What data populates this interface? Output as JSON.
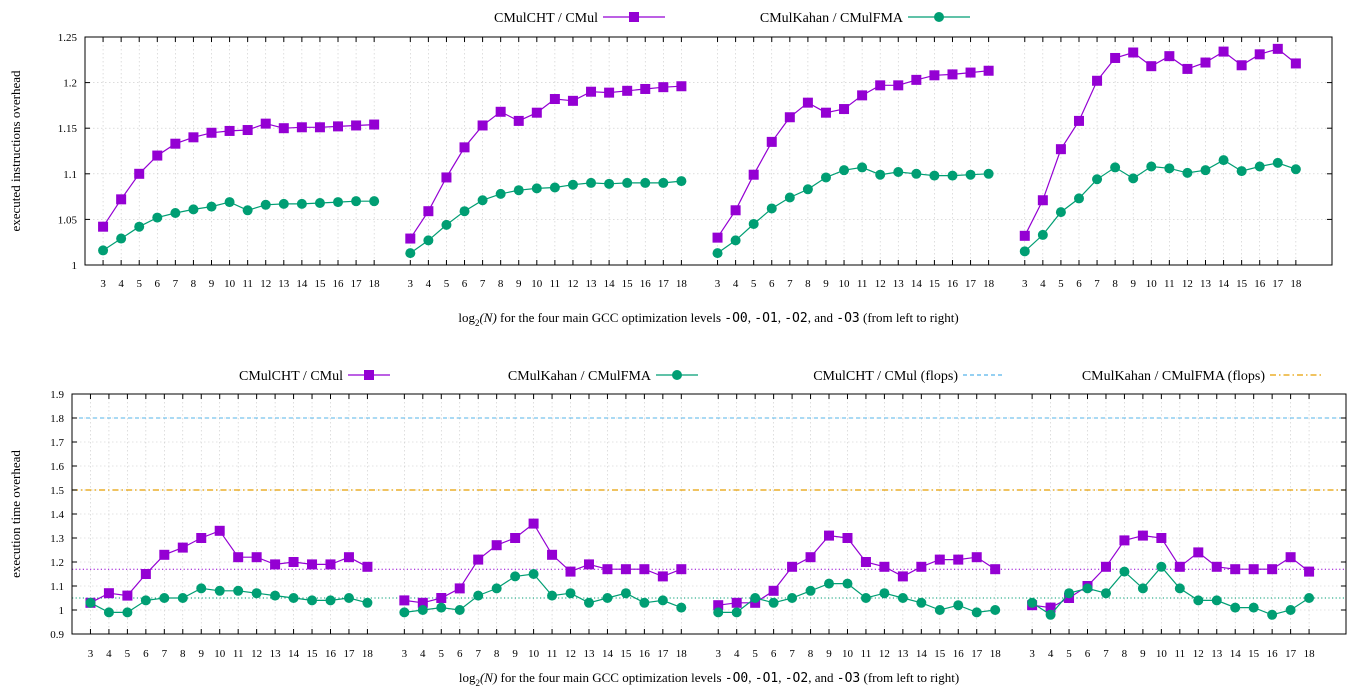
{
  "colors": {
    "cht": "#9400d3",
    "kahan": "#009e73",
    "cht_flops": "#56b4e9",
    "kahan_flops": "#e69f00"
  },
  "chart_data": [
    {
      "type": "line",
      "ylabel": "executed instructions overhead",
      "xlabel": {
        "prefix": "log",
        "sub": "2",
        "arg": "(N)",
        "text1": " for the four main GCC optimization levels ",
        "opt0": "-O0",
        "sep1": ", ",
        "opt1": "-O1",
        "sep2": ", ",
        "opt2": "-O2",
        "sep3": ", and ",
        "opt3": "-O3",
        "text2": " (from left to right)"
      },
      "ylim": [
        1,
        1.25
      ],
      "yticks": [
        "1",
        "1.05",
        "1.1",
        "1.15",
        "1.2",
        "1.25"
      ],
      "x": [
        3,
        4,
        5,
        6,
        7,
        8,
        9,
        10,
        11,
        12,
        13,
        14,
        15,
        16,
        17,
        18
      ],
      "legend": [
        "CMulCHT / CMul",
        "CMulKahan / CMulFMA"
      ],
      "series": [
        {
          "name": "CMulCHT / CMul",
          "panels": [
            [
              1.042,
              1.072,
              1.1,
              1.12,
              1.133,
              1.14,
              1.145,
              1.147,
              1.148,
              1.155,
              1.15,
              1.151,
              1.151,
              1.152,
              1.153,
              1.154
            ],
            [
              1.029,
              1.059,
              1.096,
              1.129,
              1.153,
              1.168,
              1.158,
              1.167,
              1.182,
              1.18,
              1.19,
              1.189,
              1.191,
              1.193,
              1.195,
              1.196
            ],
            [
              1.03,
              1.06,
              1.099,
              1.135,
              1.162,
              1.178,
              1.167,
              1.171,
              1.186,
              1.197,
              1.197,
              1.203,
              1.208,
              1.209,
              1.211,
              1.213
            ],
            [
              1.032,
              1.071,
              1.127,
              1.158,
              1.202,
              1.227,
              1.233,
              1.218,
              1.229,
              1.215,
              1.222,
              1.234,
              1.219,
              1.231,
              1.237,
              1.221
            ]
          ]
        },
        {
          "name": "CMulKahan / CMulFMA",
          "panels": [
            [
              1.016,
              1.029,
              1.042,
              1.052,
              1.057,
              1.061,
              1.064,
              1.069,
              1.06,
              1.066,
              1.067,
              1.067,
              1.068,
              1.069,
              1.07,
              1.07
            ],
            [
              1.013,
              1.027,
              1.044,
              1.059,
              1.071,
              1.078,
              1.082,
              1.084,
              1.085,
              1.088,
              1.09,
              1.089,
              1.09,
              1.09,
              1.09,
              1.092
            ],
            [
              1.013,
              1.027,
              1.045,
              1.062,
              1.074,
              1.083,
              1.096,
              1.104,
              1.107,
              1.099,
              1.102,
              1.1,
              1.098,
              1.098,
              1.099,
              1.1
            ],
            [
              1.015,
              1.033,
              1.058,
              1.073,
              1.094,
              1.107,
              1.095,
              1.108,
              1.106,
              1.101,
              1.104,
              1.115,
              1.103,
              1.108,
              1.112,
              1.105
            ]
          ]
        }
      ]
    },
    {
      "type": "line",
      "ylabel": "execution time overhead",
      "xlabel": {
        "prefix": "log",
        "sub": "2",
        "arg": "(N)",
        "text1": " for the four main GCC optimization levels ",
        "opt0": "-O0",
        "sep1": ", ",
        "opt1": "-O1",
        "sep2": ", ",
        "opt2": "-O2",
        "sep3": ", and ",
        "opt3": "-O3",
        "text2": " (from left to right)"
      },
      "ylim": [
        0.9,
        1.9
      ],
      "yticks": [
        "0.9",
        "1",
        "1.1",
        "1.2",
        "1.3",
        "1.4",
        "1.5",
        "1.6",
        "1.7",
        "1.8",
        "1.9"
      ],
      "x": [
        3,
        4,
        5,
        6,
        7,
        8,
        9,
        10,
        11,
        12,
        13,
        14,
        15,
        16,
        17,
        18
      ],
      "legend": [
        "CMulCHT / CMul",
        "CMulKahan / CMulFMA",
        "CMulCHT / CMul (flops)",
        "CMulKahan / CMulFMA (flops)"
      ],
      "series": [
        {
          "name": "CMulCHT / CMul",
          "panels": [
            [
              1.03,
              1.07,
              1.06,
              1.15,
              1.23,
              1.26,
              1.3,
              1.33,
              1.22,
              1.22,
              1.19,
              1.2,
              1.19,
              1.19,
              1.22,
              1.18
            ],
            [
              1.04,
              1.03,
              1.05,
              1.09,
              1.21,
              1.27,
              1.3,
              1.36,
              1.23,
              1.16,
              1.19,
              1.17,
              1.17,
              1.17,
              1.14,
              1.17
            ],
            [
              1.02,
              1.03,
              1.03,
              1.08,
              1.18,
              1.22,
              1.31,
              1.3,
              1.2,
              1.18,
              1.14,
              1.18,
              1.21,
              1.21,
              1.22,
              1.17
            ],
            [
              1.02,
              1.01,
              1.05,
              1.1,
              1.18,
              1.29,
              1.31,
              1.3,
              1.18,
              1.24,
              1.18,
              1.17,
              1.17,
              1.17,
              1.22,
              1.16
            ]
          ]
        },
        {
          "name": "CMulKahan / CMulFMA",
          "panels": [
            [
              1.03,
              0.99,
              0.99,
              1.04,
              1.05,
              1.05,
              1.09,
              1.08,
              1.08,
              1.07,
              1.06,
              1.05,
              1.04,
              1.04,
              1.05,
              1.03
            ],
            [
              0.99,
              1.0,
              1.01,
              1.0,
              1.06,
              1.09,
              1.14,
              1.15,
              1.06,
              1.07,
              1.03,
              1.05,
              1.07,
              1.03,
              1.04,
              1.01
            ],
            [
              0.99,
              0.99,
              1.05,
              1.03,
              1.05,
              1.08,
              1.11,
              1.11,
              1.05,
              1.07,
              1.05,
              1.03,
              1.0,
              1.02,
              0.99,
              1.0
            ],
            [
              1.03,
              0.98,
              1.07,
              1.09,
              1.07,
              1.16,
              1.09,
              1.18,
              1.09,
              1.04,
              1.04,
              1.01,
              1.01,
              0.98,
              1.0,
              1.05
            ]
          ]
        }
      ],
      "reference_lines": [
        {
          "name": "CMulCHT / CMul (flops)",
          "value": 1.8,
          "style": "dashed"
        },
        {
          "name": "CMulKahan / CMulFMA (flops)",
          "value": 1.5,
          "style": "dash-dot"
        },
        {
          "value": 1.17,
          "style": "dotted",
          "series_color": "cht"
        },
        {
          "value": 1.05,
          "style": "dotted",
          "series_color": "kahan"
        }
      ],
      "grid": true
    }
  ]
}
